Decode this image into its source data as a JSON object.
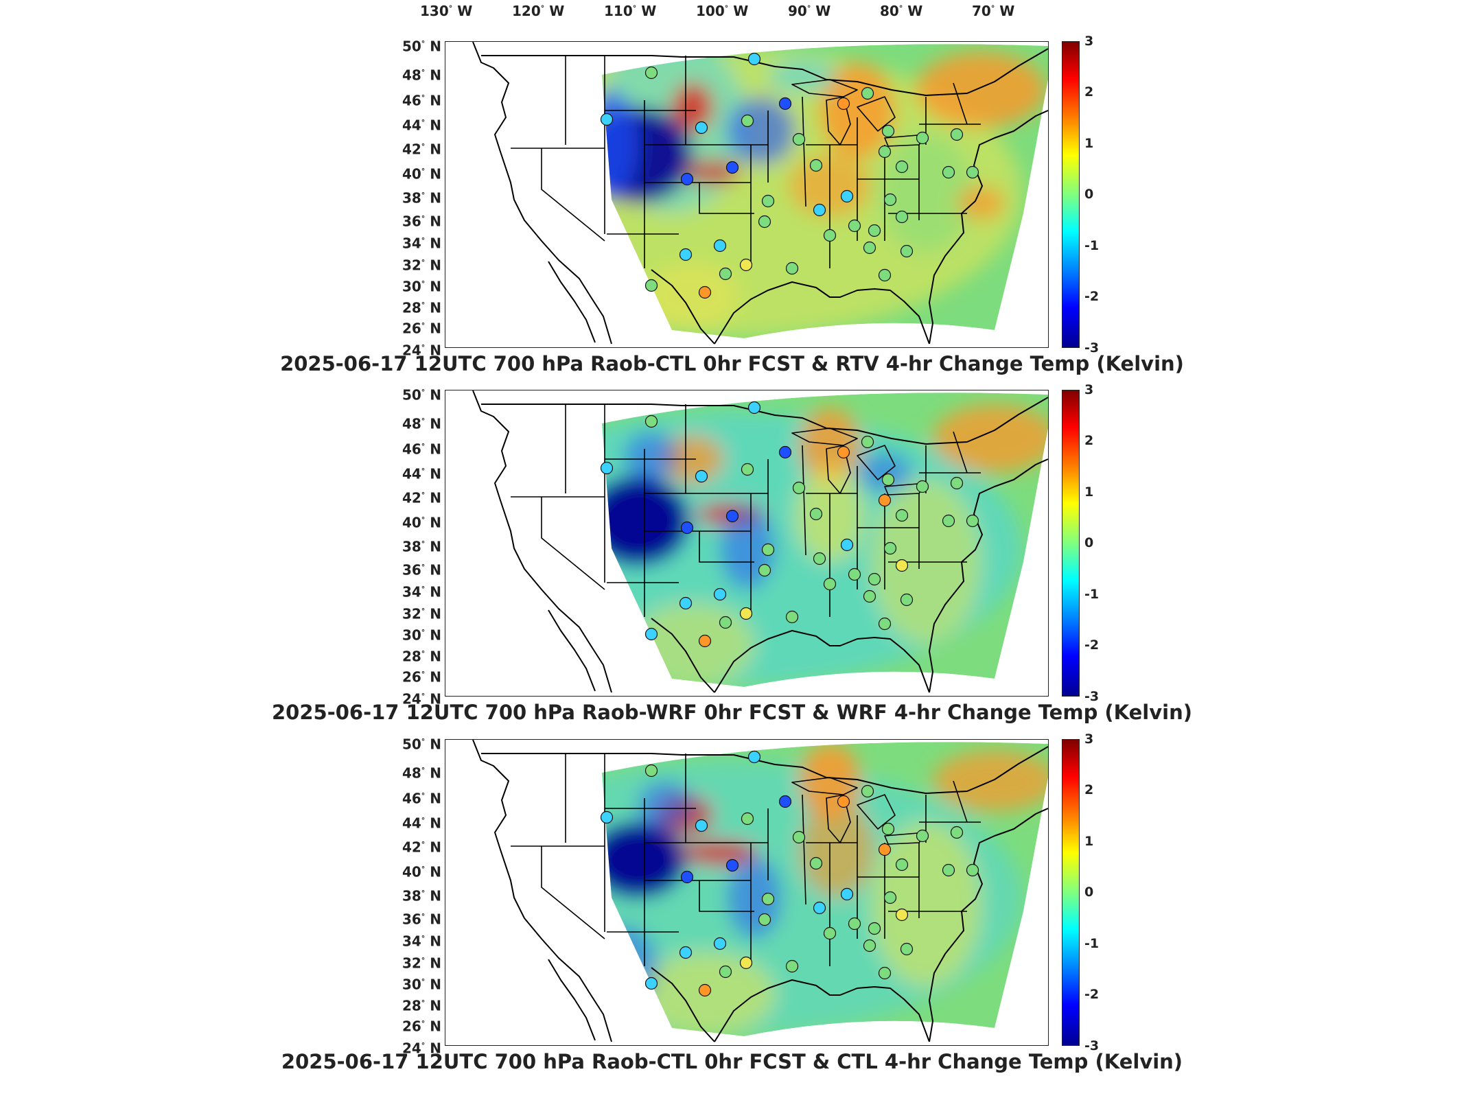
{
  "figure": {
    "longitude_labels": [
      "130",
      "120",
      "110",
      "100",
      "90",
      "80",
      "70"
    ],
    "longitude_suffix": "W",
    "latitude_labels": [
      "50",
      "48",
      "46",
      "44",
      "42",
      "40",
      "38",
      "36",
      "34",
      "32",
      "30",
      "28",
      "26",
      "24"
    ],
    "latitude_suffix": "N",
    "colorbar_ticks": [
      "3",
      "2",
      "1",
      "0",
      "-1",
      "-2",
      "-3"
    ],
    "colorbar_range": [
      -3,
      3
    ],
    "colormap": "jet"
  },
  "panels": [
    {
      "title": "2025-06-17 12UTC 700 hPa Raob-CTL 0hr FCST & RTV 4-hr Change Temp (Kelvin)",
      "field": "RTV"
    },
    {
      "title": "2025-06-17 12UTC 700 hPa Raob-WRF 0hr FCST & WRF 4-hr Change Temp (Kelvin)",
      "field": "WRF"
    },
    {
      "title": "2025-06-17 12UTC 700 hPa Raob-CTL 0hr FCST & CTL 4-hr Change Temp (Kelvin)",
      "field": "CTL"
    }
  ],
  "colors": {
    "land_outline": "#000000",
    "dark_blue": "#000090",
    "blue": "#1e50ff",
    "cyan": "#3cd2ff",
    "green": "#7ddc7d",
    "yellow": "#f0e650",
    "orange": "#ff9628",
    "red": "#dc281e"
  }
}
